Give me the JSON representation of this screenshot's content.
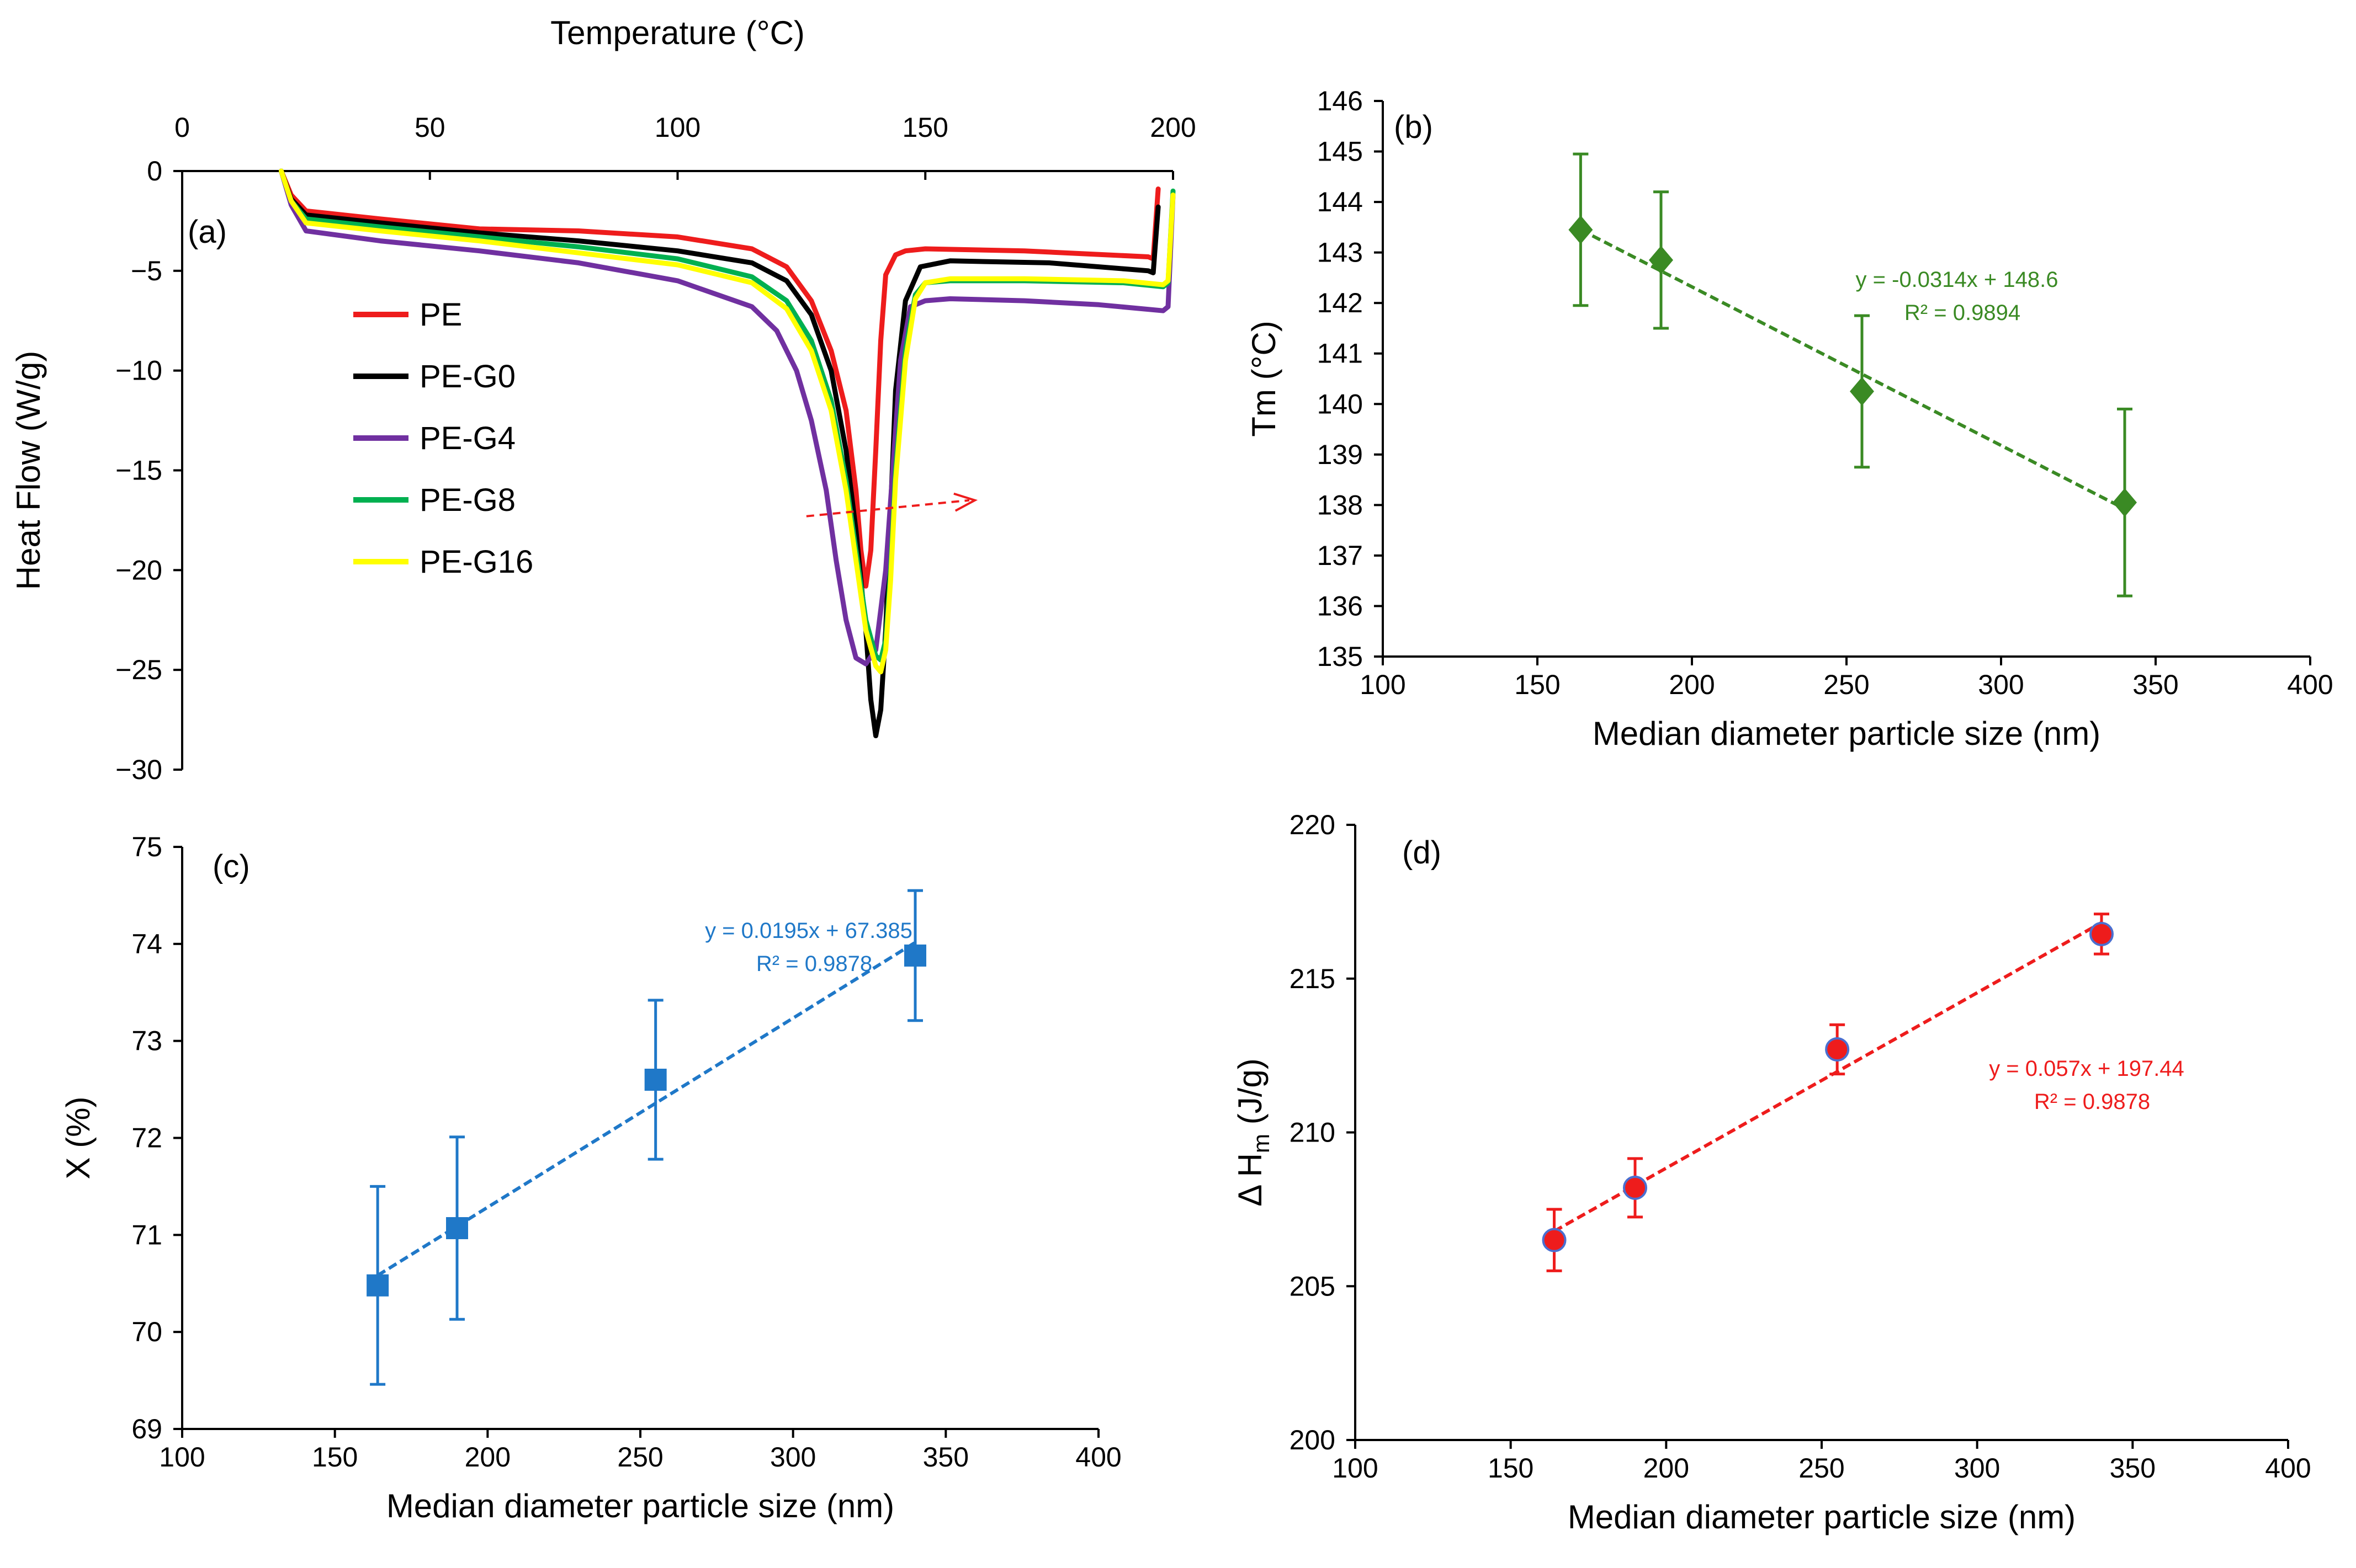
{
  "chart_data": [
    {
      "panel": "(a)",
      "type": "line",
      "title": "",
      "xlabel": "Temperature (°C)",
      "ylabel": "Heat Flow (W/g)",
      "xlim": [
        0,
        200
      ],
      "ylim": [
        -30,
        0
      ],
      "xticks": [
        "0",
        "50",
        "100",
        "150",
        "200"
      ],
      "yticks": [
        "0",
        "−5",
        "−10",
        "−15",
        "−20",
        "−25",
        "−30"
      ],
      "grid": false,
      "legend": "left-middle",
      "series": [
        {
          "name": "PE",
          "color": "#ee1c1c",
          "x": [
            20,
            22,
            25,
            40,
            60,
            80,
            100,
            115,
            122,
            127,
            131,
            134,
            136,
            137,
            138,
            139,
            140,
            141,
            142,
            144,
            146,
            150,
            170,
            195,
            196,
            197
          ],
          "y": [
            0,
            -1.2,
            -2,
            -2.4,
            -2.9,
            -3.0,
            -3.3,
            -3.9,
            -4.8,
            -6.5,
            -9,
            -12,
            -16,
            -19,
            -20.8,
            -19,
            -14,
            -8.5,
            -5.2,
            -4.2,
            -4.0,
            -3.9,
            -4.0,
            -4.3,
            -4.4,
            -0.9
          ]
        },
        {
          "name": "PE-G0",
          "color": "#000000",
          "x": [
            20,
            22,
            25,
            40,
            60,
            80,
            100,
            115,
            122,
            127,
            131,
            134,
            136,
            137,
            138,
            139,
            140,
            141,
            142,
            143,
            144,
            146,
            149,
            155,
            175,
            195,
            196,
            197
          ],
          "y": [
            0,
            -1.4,
            -2.2,
            -2.6,
            -3.1,
            -3.5,
            -4.0,
            -4.6,
            -5.5,
            -7.2,
            -10,
            -14,
            -18,
            -20.5,
            -23,
            -26.5,
            -28.3,
            -27,
            -23,
            -17,
            -11,
            -6.5,
            -4.8,
            -4.5,
            -4.6,
            -5.0,
            -5.1,
            -1.8
          ]
        },
        {
          "name": "PE-G4",
          "color": "#7030a0",
          "x": [
            20,
            22,
            25,
            40,
            60,
            80,
            100,
            115,
            120,
            124,
            127,
            130,
            132,
            134,
            136,
            138,
            140,
            142,
            144,
            145,
            147,
            150,
            155,
            170,
            185,
            198,
            199,
            200
          ],
          "y": [
            0,
            -1.7,
            -3.0,
            -3.5,
            -4.0,
            -4.6,
            -5.5,
            -6.8,
            -8,
            -10,
            -12.5,
            -16,
            -19.5,
            -22.5,
            -24.4,
            -24.7,
            -24,
            -20,
            -13,
            -9.5,
            -6.8,
            -6.5,
            -6.4,
            -6.5,
            -6.7,
            -7.0,
            -6.8,
            -1.2
          ]
        },
        {
          "name": "PE-G8",
          "color": "#00b050",
          "x": [
            20,
            22,
            25,
            40,
            60,
            80,
            100,
            115,
            122,
            127,
            131,
            134,
            136,
            138,
            140,
            141,
            142,
            143,
            144,
            146,
            148,
            150,
            155,
            170,
            190,
            198,
            199,
            200
          ],
          "y": [
            0,
            -1.5,
            -2.4,
            -2.8,
            -3.3,
            -3.8,
            -4.4,
            -5.3,
            -6.5,
            -8.5,
            -11.5,
            -15.5,
            -19,
            -22.5,
            -24.3,
            -24.5,
            -23.5,
            -20,
            -15,
            -9,
            -6.2,
            -5.6,
            -5.5,
            -5.5,
            -5.6,
            -5.8,
            -5.6,
            -1.0
          ]
        },
        {
          "name": "PE-G16",
          "color": "#ffff00",
          "x": [
            20,
            22,
            25,
            40,
            60,
            80,
            100,
            115,
            122,
            127,
            131,
            134,
            136,
            138,
            140,
            141,
            142,
            143,
            144,
            146,
            148,
            150,
            155,
            170,
            190,
            198,
            199,
            200
          ],
          "y": [
            0,
            -1.5,
            -2.6,
            -3.0,
            -3.5,
            -4.1,
            -4.7,
            -5.6,
            -6.9,
            -9,
            -12,
            -16,
            -19.5,
            -23,
            -24.8,
            -25.1,
            -24,
            -20.5,
            -15.5,
            -9.5,
            -6.4,
            -5.6,
            -5.4,
            -5.4,
            -5.5,
            -5.7,
            -5.5,
            -1.2
          ]
        }
      ],
      "annotations": [
        {
          "type": "arrow",
          "color": "#ee1c1c",
          "from": [
            126,
            -17.3
          ],
          "to": [
            160,
            -16.5
          ],
          "style": "dashed"
        }
      ]
    },
    {
      "panel": "(b)",
      "type": "scatter",
      "xlabel": "Median diameter particle size (nm)",
      "ylabel": "Tm (°C)",
      "xlim": [
        100,
        400
      ],
      "ylim": [
        135,
        146
      ],
      "xticks": [
        "100",
        "150",
        "200",
        "250",
        "300",
        "350",
        "400"
      ],
      "yticks": [
        "135",
        "136",
        "137",
        "138",
        "139",
        "140",
        "141",
        "142",
        "143",
        "144",
        "145",
        "146"
      ],
      "color": "#3a8a24",
      "marker": "diamond",
      "x": [
        164,
        190,
        255,
        340
      ],
      "y": [
        143.45,
        142.85,
        140.25,
        138.05
      ],
      "yerr": [
        1.5,
        1.35,
        1.5,
        1.85
      ],
      "trendline": {
        "slope": -0.0314,
        "intercept": 148.6,
        "equation": "y = -0.0314x + 148.6",
        "r2": "R² = 0.9894"
      }
    },
    {
      "panel": "(c)",
      "type": "scatter",
      "xlabel": "Median diameter particle size (nm)",
      "ylabel": "Χ (%)",
      "xlim": [
        100,
        400
      ],
      "ylim": [
        69,
        75
      ],
      "xticks": [
        "100",
        "150",
        "200",
        "250",
        "300",
        "350",
        "400"
      ],
      "yticks": [
        "69",
        "70",
        "71",
        "72",
        "73",
        "74",
        "75"
      ],
      "color": "#1f78c8",
      "marker": "square",
      "x": [
        164,
        190,
        255,
        340
      ],
      "y": [
        70.48,
        71.07,
        72.6,
        73.88
      ],
      "yerr": [
        1.02,
        0.94,
        0.82,
        0.67
      ],
      "trendline": {
        "slope": 0.0195,
        "intercept": 67.385,
        "equation": "y = 0.0195x + 67.385",
        "r2": "R² = 0.9878"
      }
    },
    {
      "panel": "(d)",
      "type": "scatter",
      "xlabel": "Median diameter particle size (nm)",
      "ylabel": "Δ H",
      "ylabel_sub": "m",
      "ylabel_unit": " (J/g)",
      "xlim": [
        100,
        400
      ],
      "ylim": [
        200,
        220
      ],
      "xticks": [
        "100",
        "150",
        "200",
        "250",
        "300",
        "350",
        "400"
      ],
      "yticks": [
        "200",
        "205",
        "210",
        "215",
        "220"
      ],
      "color": "#ee1c1c",
      "marker_edge": "#4a6fd0",
      "marker": "circle",
      "x": [
        164,
        190,
        255,
        340
      ],
      "y": [
        206.5,
        208.2,
        212.7,
        216.45
      ],
      "yerr": [
        1.0,
        0.95,
        0.8,
        0.65
      ],
      "trendline": {
        "slope": 0.057,
        "intercept": 197.44,
        "equation": "y = 0.057x + 197.44",
        "r2": "R² = 0.9878"
      }
    }
  ]
}
